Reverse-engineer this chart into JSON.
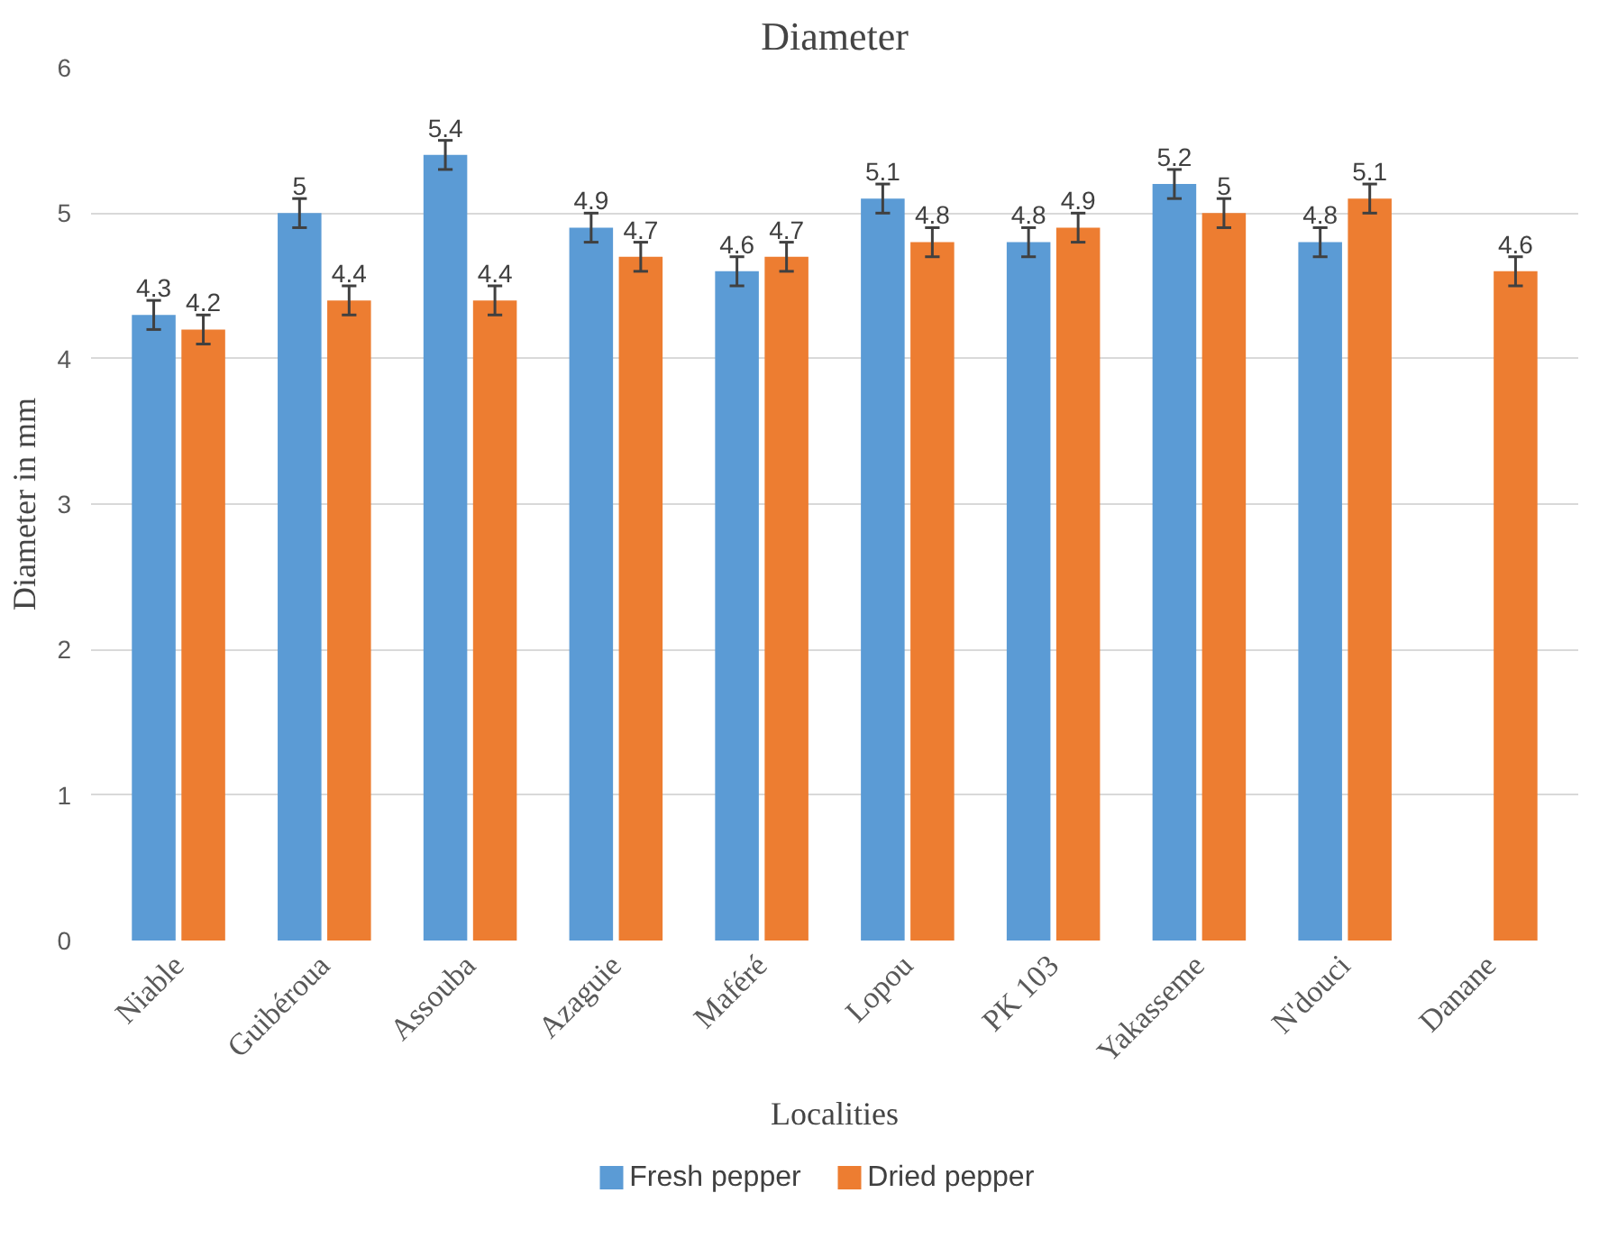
{
  "chart_data": {
    "type": "bar",
    "title": "Diameter",
    "xlabel": "Localities",
    "ylabel": "Diameter in mm",
    "categories": [
      "Niable",
      "Guibéroua",
      "Assouba",
      "Azaguie",
      "Maféré",
      "Lopou",
      "PK 103",
      "Yakasseme",
      "N'douci",
      "Danane"
    ],
    "series": [
      {
        "name": "Fresh pepper",
        "color": "#5b9bd5",
        "values": [
          4.3,
          5,
          5.4,
          4.9,
          4.6,
          5.1,
          4.8,
          5.2,
          4.8,
          null
        ],
        "errors": [
          0.1,
          0.1,
          0.1,
          0.1,
          0.1,
          0.1,
          0.1,
          0.1,
          0.1,
          null
        ]
      },
      {
        "name": "Dried pepper",
        "color": "#ed7d31",
        "values": [
          4.2,
          4.4,
          4.4,
          4.7,
          4.7,
          4.8,
          4.9,
          5,
          5.1,
          4.6
        ],
        "errors": [
          0.1,
          0.1,
          0.1,
          0.1,
          0.1,
          0.1,
          0.1,
          0.1,
          0.1,
          0.1
        ]
      }
    ],
    "ylim": [
      0,
      6
    ],
    "yticks": [
      0,
      1,
      2,
      3,
      4,
      5,
      6
    ],
    "grid": "y",
    "legend": "bottom",
    "data_labels": true
  }
}
